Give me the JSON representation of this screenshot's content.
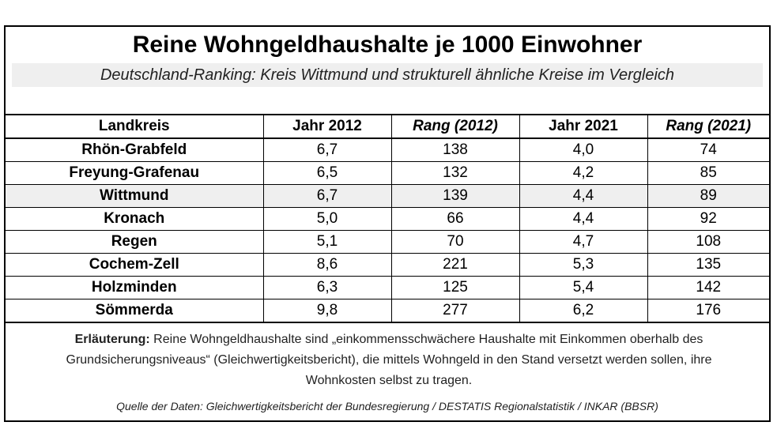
{
  "title": "Reine Wohngeldhaushalte je 1000 Einwohner",
  "subtitle": "Deutschland-Ranking: Kreis Wittmund und strukturell ähnliche Kreise im Vergleich",
  "table": {
    "headers": [
      "Landkreis",
      "Jahr 2012",
      "Rang (2012)",
      "Jahr 2021",
      "Rang (2021)"
    ],
    "rows": [
      [
        "Rhön-Grabfeld",
        "6,7",
        "138",
        "4,0",
        "74"
      ],
      [
        "Freyung-Grafenau",
        "6,5",
        "132",
        "4,2",
        "85"
      ],
      [
        "Wittmund",
        "6,7",
        "139",
        "4,4",
        "89"
      ],
      [
        "Kronach",
        "5,0",
        "66",
        "4,4",
        "92"
      ],
      [
        "Regen",
        "5,1",
        "70",
        "4,7",
        "108"
      ],
      [
        "Cochem-Zell",
        "8,6",
        "221",
        "5,3",
        "135"
      ],
      [
        "Holzminden",
        "6,3",
        "125",
        "5,4",
        "142"
      ],
      [
        "Sömmerda",
        "9,8",
        "277",
        "6,2",
        "176"
      ]
    ],
    "highlight_color": "#efefef"
  },
  "note": {
    "label": "Erläuterung:",
    "text": " Reine Wohngeldhaushalte sind „einkommensschwächere Haushalte mit Einkommen oberhalb des Grundsicherungsniveaus“  (Gleichwertigkeitsbericht), die mittels Wohngeld in den Stand versetzt werden sollen, ihre Wohnkosten selbst zu tragen."
  },
  "source": "Quelle der Daten: Gleichwertigkeitsbericht der Bundesregierung / DESTATIS Regionalstatistik / INKAR (BBSR)"
}
